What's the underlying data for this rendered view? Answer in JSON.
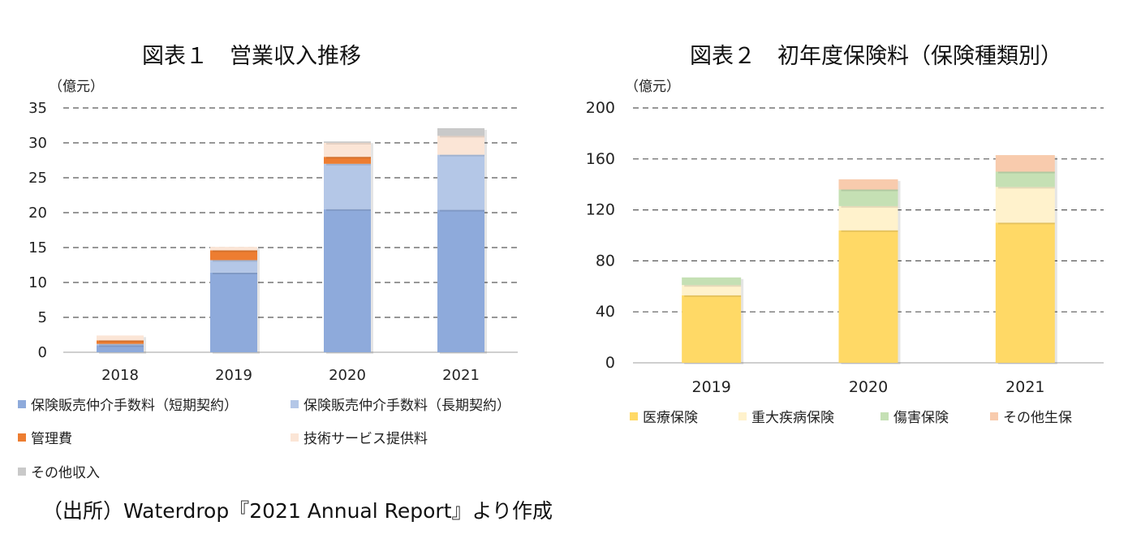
{
  "charts": [
    {
      "title": "図表１　営業収入推移",
      "unit": "（億元）",
      "chart_data": {
        "type": "bar",
        "stacked": true,
        "categories": [
          "2018",
          "2019",
          "2020",
          "2021"
        ],
        "ylim": [
          0,
          35
        ],
        "yticks": [
          0,
          5,
          10,
          15,
          20,
          25,
          30,
          35
        ],
        "grid": "dashed horizontal",
        "legend_position": "bottom",
        "series": [
          {
            "name": "保険販売仲介手数料（短期契約）",
            "color": "#8eaadb",
            "values": [
              1.0,
              11.4,
              20.5,
              20.4
            ]
          },
          {
            "name": "保険販売仲介手数料（長期契約）",
            "color": "#b4c7e7",
            "values": [
              0.2,
              1.8,
              6.5,
              7.9
            ]
          },
          {
            "name": "管理費",
            "color": "#ed7d31",
            "values": [
              0.5,
              1.4,
              1.0,
              0.0
            ]
          },
          {
            "name": "技術サービス提供料",
            "color": "#fbe5d6",
            "values": [
              0.7,
              0.5,
              2.0,
              2.7
            ]
          },
          {
            "name": "その他収入",
            "color": "#c9c9c9",
            "values": [
              0.0,
              0.0,
              0.2,
              1.1
            ]
          }
        ]
      }
    },
    {
      "title": "図表２　初年度保険料（保険種類別）",
      "unit": "（億元）",
      "chart_data": {
        "type": "bar",
        "stacked": true,
        "categories": [
          "2019",
          "2020",
          "2021"
        ],
        "ylim": [
          0,
          200
        ],
        "yticks": [
          0,
          40,
          80,
          120,
          160,
          200
        ],
        "grid": "dashed horizontal",
        "legend_position": "bottom",
        "series": [
          {
            "name": "医療保険",
            "color": "#ffd966",
            "values": [
              53,
              104,
              110
            ]
          },
          {
            "name": "重大疾病保険",
            "color": "#fff2cc",
            "values": [
              8,
              19,
              28
            ]
          },
          {
            "name": "傷害保険",
            "color": "#c5e0b4",
            "values": [
              6,
              13,
              12
            ]
          },
          {
            "name": "その他生保",
            "color": "#f8cbad",
            "values": [
              0,
              8,
              13
            ]
          }
        ]
      }
    }
  ],
  "source": "（出所）Waterdrop『2021 Annual Report』より作成"
}
